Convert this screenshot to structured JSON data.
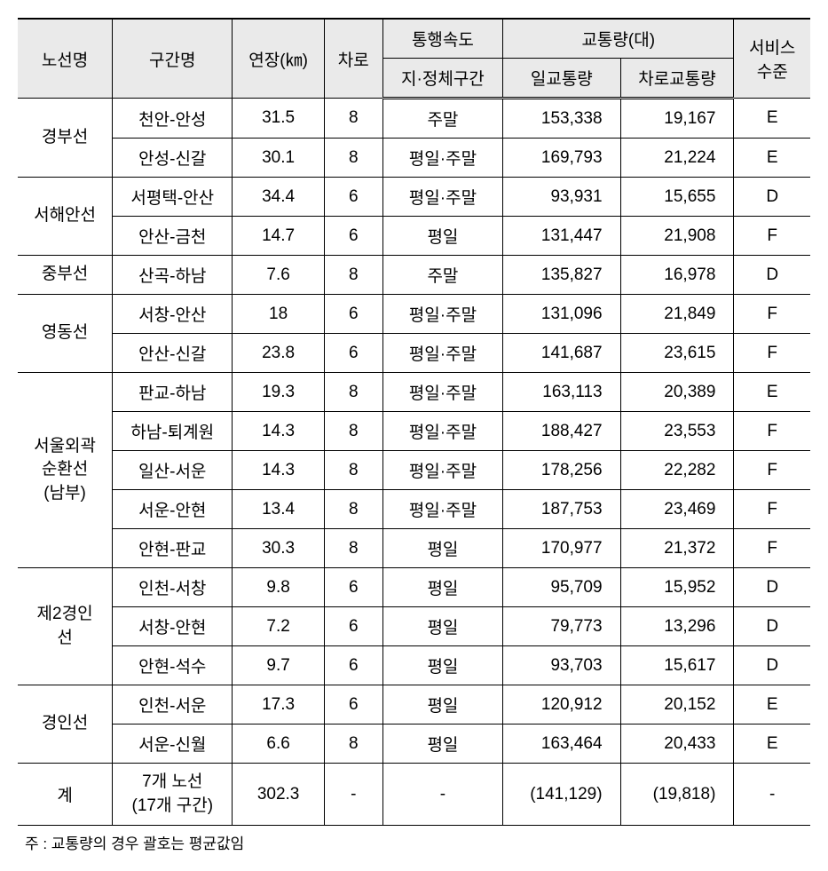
{
  "headers": {
    "route": "노선명",
    "section": "구간명",
    "length": "연장(㎞)",
    "lanes": "차로",
    "speed_header": "통행속도",
    "speed_sub": "지·정체구간",
    "traffic": "교통량(대)",
    "daily_traffic": "일교통량",
    "lane_traffic": "차로교통량",
    "service": "서비스\n수준"
  },
  "routes": [
    {
      "name": "경부선",
      "rows": [
        {
          "section": "천안-안성",
          "length": "31.5",
          "lanes": "8",
          "speed": "주말",
          "daily": "153,338",
          "lane": "19,167",
          "service": "E"
        },
        {
          "section": "안성-신갈",
          "length": "30.1",
          "lanes": "8",
          "speed": "평일·주말",
          "daily": "169,793",
          "lane": "21,224",
          "service": "E"
        }
      ]
    },
    {
      "name": "서해안선",
      "rows": [
        {
          "section": "서평택-안산",
          "length": "34.4",
          "lanes": "6",
          "speed": "평일·주말",
          "daily": "93,931",
          "lane": "15,655",
          "service": "D"
        },
        {
          "section": "안산-금천",
          "length": "14.7",
          "lanes": "6",
          "speed": "평일",
          "daily": "131,447",
          "lane": "21,908",
          "service": "F"
        }
      ]
    },
    {
      "name": "중부선",
      "rows": [
        {
          "section": "산곡-하남",
          "length": "7.6",
          "lanes": "8",
          "speed": "주말",
          "daily": "135,827",
          "lane": "16,978",
          "service": "D"
        }
      ]
    },
    {
      "name": "영동선",
      "rows": [
        {
          "section": "서창-안산",
          "length": "18",
          "lanes": "6",
          "speed": "평일·주말",
          "daily": "131,096",
          "lane": "21,849",
          "service": "F"
        },
        {
          "section": "안산-신갈",
          "length": "23.8",
          "lanes": "6",
          "speed": "평일·주말",
          "daily": "141,687",
          "lane": "23,615",
          "service": "F"
        }
      ]
    },
    {
      "name": "서울외곽\n순환선\n(남부)",
      "rows": [
        {
          "section": "판교-하남",
          "length": "19.3",
          "lanes": "8",
          "speed": "평일·주말",
          "daily": "163,113",
          "lane": "20,389",
          "service": "E"
        },
        {
          "section": "하남-퇴계원",
          "length": "14.3",
          "lanes": "8",
          "speed": "평일·주말",
          "daily": "188,427",
          "lane": "23,553",
          "service": "F"
        },
        {
          "section": "일산-서운",
          "length": "14.3",
          "lanes": "8",
          "speed": "평일·주말",
          "daily": "178,256",
          "lane": "22,282",
          "service": "F"
        },
        {
          "section": "서운-안현",
          "length": "13.4",
          "lanes": "8",
          "speed": "평일·주말",
          "daily": "187,753",
          "lane": "23,469",
          "service": "F"
        },
        {
          "section": "안현-판교",
          "length": "30.3",
          "lanes": "8",
          "speed": "평일",
          "daily": "170,977",
          "lane": "21,372",
          "service": "F"
        }
      ]
    },
    {
      "name": "제2경인\n선",
      "rows": [
        {
          "section": "인천-서창",
          "length": "9.8",
          "lanes": "6",
          "speed": "평일",
          "daily": "95,709",
          "lane": "15,952",
          "service": "D"
        },
        {
          "section": "서창-안현",
          "length": "7.2",
          "lanes": "6",
          "speed": "평일",
          "daily": "79,773",
          "lane": "13,296",
          "service": "D"
        },
        {
          "section": "안현-석수",
          "length": "9.7",
          "lanes": "6",
          "speed": "평일",
          "daily": "93,703",
          "lane": "15,617",
          "service": "D"
        }
      ]
    },
    {
      "name": "경인선",
      "rows": [
        {
          "section": "인천-서운",
          "length": "17.3",
          "lanes": "6",
          "speed": "평일",
          "daily": "120,912",
          "lane": "20,152",
          "service": "E"
        },
        {
          "section": "서운-신월",
          "length": "6.6",
          "lanes": "8",
          "speed": "평일",
          "daily": "163,464",
          "lane": "20,433",
          "service": "E"
        }
      ]
    }
  ],
  "total": {
    "label": "계",
    "section": "7개 노선\n(17개 구간)",
    "length": "302.3",
    "lanes": "-",
    "speed": "-",
    "daily": "(141,129)",
    "lane": "(19,818)",
    "service": "-"
  },
  "footnote": "주 : 교통량의 경우 괄호는 평균값임"
}
